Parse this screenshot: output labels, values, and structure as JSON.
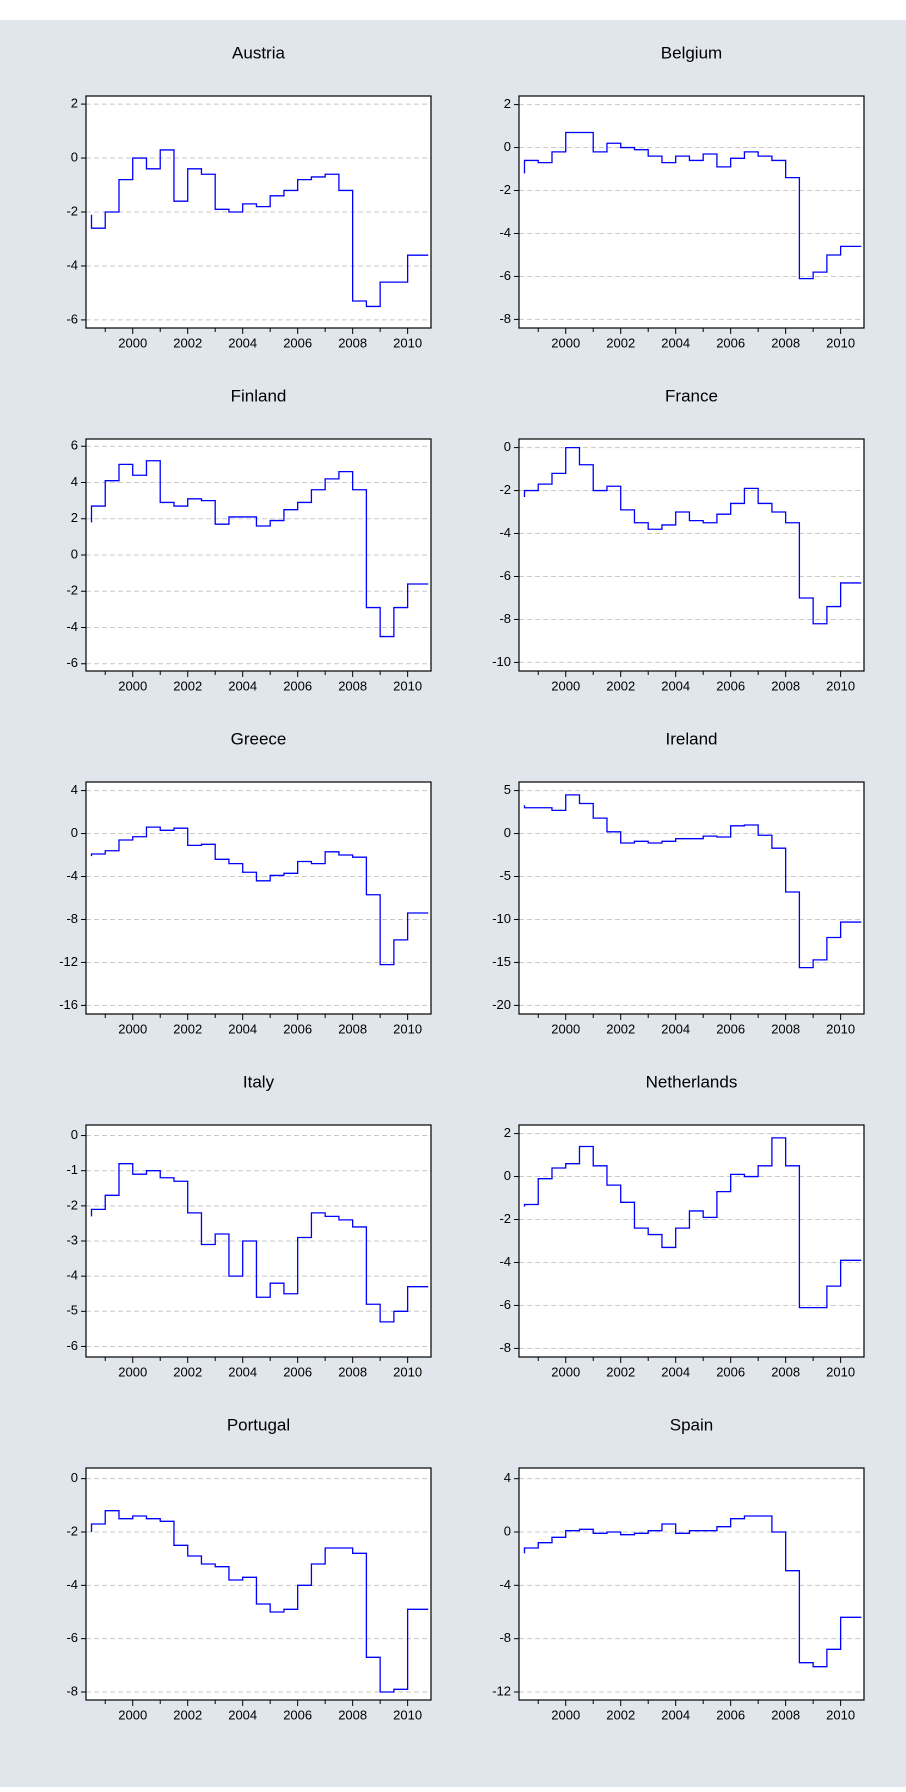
{
  "chart_data": [
    {
      "type": "line",
      "step": true,
      "title": "Austria",
      "color": "#0000ff",
      "grid": true,
      "xlim": [
        1998.3,
        2010.85
      ],
      "xticks": [
        2000,
        2002,
        2004,
        2006,
        2008,
        2010
      ],
      "xminorticks": [
        1999,
        2001,
        2003,
        2005,
        2007,
        2009
      ],
      "ylim": [
        -6.3,
        2.3
      ],
      "yticks": [
        -6,
        -4,
        -2,
        0,
        2
      ],
      "x": [
        1998.5,
        1999,
        1999.5,
        2000,
        2000.5,
        2001,
        2001.5,
        2002,
        2002.5,
        2003,
        2003.5,
        2004,
        2004.5,
        2005,
        2005.5,
        2006,
        2006.5,
        2007,
        2007.5,
        2008,
        2008.5,
        2009,
        2009.5,
        2010,
        2010.5
      ],
      "values": [
        -2.1,
        -2.6,
        -2.0,
        -0.8,
        0.0,
        -0.4,
        0.3,
        -1.6,
        -0.4,
        -0.6,
        -1.9,
        -2.0,
        -1.7,
        -1.8,
        -1.4,
        -1.2,
        -0.8,
        -0.7,
        -0.6,
        -1.2,
        -5.3,
        -5.5,
        -4.6,
        -4.6,
        -3.6
      ]
    },
    {
      "type": "line",
      "step": true,
      "title": "Belgium",
      "color": "#0000ff",
      "grid": true,
      "xlim": [
        1998.3,
        2010.85
      ],
      "xticks": [
        2000,
        2002,
        2004,
        2006,
        2008,
        2010
      ],
      "xminorticks": [
        1999,
        2001,
        2003,
        2005,
        2007,
        2009
      ],
      "ylim": [
        -8.4,
        2.4
      ],
      "yticks": [
        -8,
        -6,
        -4,
        -2,
        0,
        2
      ],
      "x": [
        1998.5,
        1999,
        1999.5,
        2000,
        2000.5,
        2001,
        2001.5,
        2002,
        2002.5,
        2003,
        2003.5,
        2004,
        2004.5,
        2005,
        2005.5,
        2006,
        2006.5,
        2007,
        2007.5,
        2008,
        2008.5,
        2009,
        2009.5,
        2010,
        2010.5
      ],
      "values": [
        -1.2,
        -0.6,
        -0.7,
        -0.2,
        0.7,
        0.7,
        -0.2,
        0.2,
        0.0,
        -0.1,
        -0.4,
        -0.7,
        -0.4,
        -0.6,
        -0.3,
        -0.9,
        -0.5,
        -0.2,
        -0.4,
        -0.6,
        -1.4,
        -6.1,
        -5.8,
        -5.0,
        -4.6
      ]
    },
    {
      "type": "line",
      "step": true,
      "title": "Finland",
      "color": "#0000ff",
      "grid": true,
      "xlim": [
        1998.3,
        2010.85
      ],
      "xticks": [
        2000,
        2002,
        2004,
        2006,
        2008,
        2010
      ],
      "xminorticks": [
        1999,
        2001,
        2003,
        2005,
        2007,
        2009
      ],
      "ylim": [
        -6.4,
        6.4
      ],
      "yticks": [
        -6,
        -4,
        -2,
        0,
        2,
        4,
        6
      ],
      "x": [
        1998.5,
        1999,
        1999.5,
        2000,
        2000.5,
        2001,
        2001.5,
        2002,
        2002.5,
        2003,
        2003.5,
        2004,
        2004.5,
        2005,
        2005.5,
        2006,
        2006.5,
        2007,
        2007.5,
        2008,
        2008.5,
        2009,
        2009.5,
        2010,
        2010.5
      ],
      "values": [
        1.8,
        2.7,
        4.1,
        5.0,
        4.4,
        5.2,
        2.9,
        2.7,
        3.1,
        3.0,
        1.7,
        2.1,
        2.1,
        1.6,
        1.9,
        2.5,
        2.9,
        3.6,
        4.2,
        4.6,
        3.6,
        -2.9,
        -4.5,
        -2.9,
        -1.6
      ]
    },
    {
      "type": "line",
      "step": true,
      "title": "France",
      "color": "#0000ff",
      "grid": true,
      "xlim": [
        1998.3,
        2010.85
      ],
      "xticks": [
        2000,
        2002,
        2004,
        2006,
        2008,
        2010
      ],
      "xminorticks": [
        1999,
        2001,
        2003,
        2005,
        2007,
        2009
      ],
      "ylim": [
        -10.4,
        0.4
      ],
      "yticks": [
        -10,
        -8,
        -6,
        -4,
        -2,
        0
      ],
      "x": [
        1998.5,
        1999,
        1999.5,
        2000,
        2000.5,
        2001,
        2001.5,
        2002,
        2002.5,
        2003,
        2003.5,
        2004,
        2004.5,
        2005,
        2005.5,
        2006,
        2006.5,
        2007,
        2007.5,
        2008,
        2008.5,
        2009,
        2009.5,
        2010,
        2010.5
      ],
      "values": [
        -2.3,
        -2.0,
        -1.7,
        -1.2,
        0.0,
        -0.8,
        -2.0,
        -1.8,
        -2.9,
        -3.5,
        -3.8,
        -3.6,
        -3.0,
        -3.4,
        -3.5,
        -3.1,
        -2.6,
        -1.9,
        -2.6,
        -3.0,
        -3.5,
        -7.0,
        -8.2,
        -7.4,
        -6.3
      ]
    },
    {
      "type": "line",
      "step": true,
      "title": "Greece",
      "color": "#0000ff",
      "grid": true,
      "xlim": [
        1998.3,
        2010.85
      ],
      "xticks": [
        2000,
        2002,
        2004,
        2006,
        2008,
        2010
      ],
      "xminorticks": [
        1999,
        2001,
        2003,
        2005,
        2007,
        2009
      ],
      "ylim": [
        -16.8,
        4.8
      ],
      "yticks": [
        -16,
        -12,
        -8,
        -4,
        0,
        4
      ],
      "x": [
        1998.5,
        1999,
        1999.5,
        2000,
        2000.5,
        2001,
        2001.5,
        2002,
        2002.5,
        2003,
        2003.5,
        2004,
        2004.5,
        2005,
        2005.5,
        2006,
        2006.5,
        2007,
        2007.5,
        2008,
        2008.5,
        2009,
        2009.5,
        2010,
        2010.5
      ],
      "values": [
        -2.1,
        -1.9,
        -1.6,
        -0.6,
        -0.3,
        0.6,
        0.3,
        0.5,
        -1.1,
        -1.0,
        -2.4,
        -2.8,
        -3.6,
        -4.4,
        -3.9,
        -3.7,
        -2.6,
        -2.8,
        -1.7,
        -2.0,
        -2.2,
        -5.7,
        -12.2,
        -9.9,
        -7.4
      ]
    },
    {
      "type": "line",
      "step": true,
      "title": "Ireland",
      "color": "#0000ff",
      "grid": true,
      "xlim": [
        1998.3,
        2010.85
      ],
      "xticks": [
        2000,
        2002,
        2004,
        2006,
        2008,
        2010
      ],
      "xminorticks": [
        1999,
        2001,
        2003,
        2005,
        2007,
        2009
      ],
      "ylim": [
        -21,
        6
      ],
      "yticks": [
        -20,
        -15,
        -10,
        -5,
        0,
        5
      ],
      "x": [
        1998.5,
        1999,
        1999.5,
        2000,
        2000.5,
        2001,
        2001.5,
        2002,
        2002.5,
        2003,
        2003.5,
        2004,
        2004.5,
        2005,
        2005.5,
        2006,
        2006.5,
        2007,
        2007.5,
        2008,
        2008.5,
        2009,
        2009.5,
        2010,
        2010.5
      ],
      "values": [
        3.3,
        3.0,
        3.0,
        2.7,
        4.5,
        3.5,
        1.8,
        0.2,
        -1.1,
        -0.9,
        -1.1,
        -0.9,
        -0.6,
        -0.6,
        -0.3,
        -0.4,
        0.9,
        1.0,
        -0.2,
        -1.7,
        -6.8,
        -15.6,
        -14.7,
        -12.1,
        -10.3
      ]
    },
    {
      "type": "line",
      "step": true,
      "title": "Italy",
      "color": "#0000ff",
      "grid": true,
      "xlim": [
        1998.3,
        2010.85
      ],
      "xticks": [
        2000,
        2002,
        2004,
        2006,
        2008,
        2010
      ],
      "xminorticks": [
        1999,
        2001,
        2003,
        2005,
        2007,
        2009
      ],
      "ylim": [
        -6.3,
        0.3
      ],
      "yticks": [
        -6,
        -5,
        -4,
        -3,
        -2,
        -1,
        0
      ],
      "x": [
        1998.5,
        1999,
        1999.5,
        2000,
        2000.5,
        2001,
        2001.5,
        2002,
        2002.5,
        2003,
        2003.5,
        2004,
        2004.5,
        2005,
        2005.5,
        2006,
        2006.5,
        2007,
        2007.5,
        2008,
        2008.5,
        2009,
        2009.5,
        2010,
        2010.5
      ],
      "values": [
        -2.3,
        -2.1,
        -1.7,
        -0.8,
        -1.1,
        -1.0,
        -1.2,
        -1.3,
        -2.2,
        -3.1,
        -2.8,
        -4.0,
        -3.0,
        -4.6,
        -4.2,
        -4.5,
        -2.9,
        -2.2,
        -2.3,
        -2.4,
        -2.6,
        -4.8,
        -5.3,
        -5.0,
        -4.3
      ]
    },
    {
      "type": "line",
      "step": true,
      "title": "Netherlands",
      "color": "#0000ff",
      "grid": true,
      "xlim": [
        1998.3,
        2010.85
      ],
      "xticks": [
        2000,
        2002,
        2004,
        2006,
        2008,
        2010
      ],
      "xminorticks": [
        1999,
        2001,
        2003,
        2005,
        2007,
        2009
      ],
      "ylim": [
        -8.4,
        2.4
      ],
      "yticks": [
        -8,
        -6,
        -4,
        -2,
        0,
        2
      ],
      "x": [
        1998.5,
        1999,
        1999.5,
        2000,
        2000.5,
        2001,
        2001.5,
        2002,
        2002.5,
        2003,
        2003.5,
        2004,
        2004.5,
        2005,
        2005.5,
        2006,
        2006.5,
        2007,
        2007.5,
        2008,
        2008.5,
        2009,
        2009.5,
        2010,
        2010.5
      ],
      "values": [
        -1.4,
        -1.3,
        -0.1,
        0.4,
        0.6,
        1.4,
        0.5,
        -0.4,
        -1.2,
        -2.4,
        -2.7,
        -3.3,
        -2.4,
        -1.6,
        -1.9,
        -0.7,
        0.1,
        0.0,
        0.5,
        1.8,
        0.5,
        -6.1,
        -6.1,
        -5.1,
        -3.9
      ]
    },
    {
      "type": "line",
      "step": true,
      "title": "Portugal",
      "color": "#0000ff",
      "grid": true,
      "xlim": [
        1998.3,
        2010.85
      ],
      "xticks": [
        2000,
        2002,
        2004,
        2006,
        2008,
        2010
      ],
      "xminorticks": [
        1999,
        2001,
        2003,
        2005,
        2007,
        2009
      ],
      "ylim": [
        -8.3,
        0.4
      ],
      "yticks": [
        -8,
        -6,
        -4,
        -2,
        0
      ],
      "x": [
        1998.5,
        1999,
        1999.5,
        2000,
        2000.5,
        2001,
        2001.5,
        2002,
        2002.5,
        2003,
        2003.5,
        2004,
        2004.5,
        2005,
        2005.5,
        2006,
        2006.5,
        2007,
        2007.5,
        2008,
        2008.5,
        2009,
        2009.5,
        2010,
        2010.5
      ],
      "values": [
        -2.0,
        -1.7,
        -1.2,
        -1.5,
        -1.4,
        -1.5,
        -1.6,
        -2.5,
        -2.9,
        -3.2,
        -3.3,
        -3.8,
        -3.7,
        -4.7,
        -5.0,
        -4.9,
        -4.0,
        -3.2,
        -2.6,
        -2.6,
        -2.8,
        -6.7,
        -8.0,
        -7.9,
        -4.9
      ]
    },
    {
      "type": "line",
      "step": true,
      "title": "Spain",
      "color": "#0000ff",
      "grid": true,
      "xlim": [
        1998.3,
        2010.85
      ],
      "xticks": [
        2000,
        2002,
        2004,
        2006,
        2008,
        2010
      ],
      "xminorticks": [
        1999,
        2001,
        2003,
        2005,
        2007,
        2009
      ],
      "ylim": [
        -12.6,
        4.8
      ],
      "yticks": [
        -12,
        -8,
        -4,
        0,
        4
      ],
      "x": [
        1998.5,
        1999,
        1999.5,
        2000,
        2000.5,
        2001,
        2001.5,
        2002,
        2002.5,
        2003,
        2003.5,
        2004,
        2004.5,
        2005,
        2005.5,
        2006,
        2006.5,
        2007,
        2007.5,
        2008,
        2008.5,
        2009,
        2009.5,
        2010,
        2010.5
      ],
      "values": [
        -1.6,
        -1.2,
        -0.8,
        -0.4,
        0.1,
        0.2,
        -0.1,
        0.0,
        -0.2,
        -0.1,
        0.1,
        0.6,
        -0.1,
        0.1,
        0.1,
        0.4,
        1.0,
        1.2,
        1.2,
        0.0,
        -2.9,
        -9.8,
        -10.1,
        -8.8,
        -6.4
      ]
    }
  ]
}
